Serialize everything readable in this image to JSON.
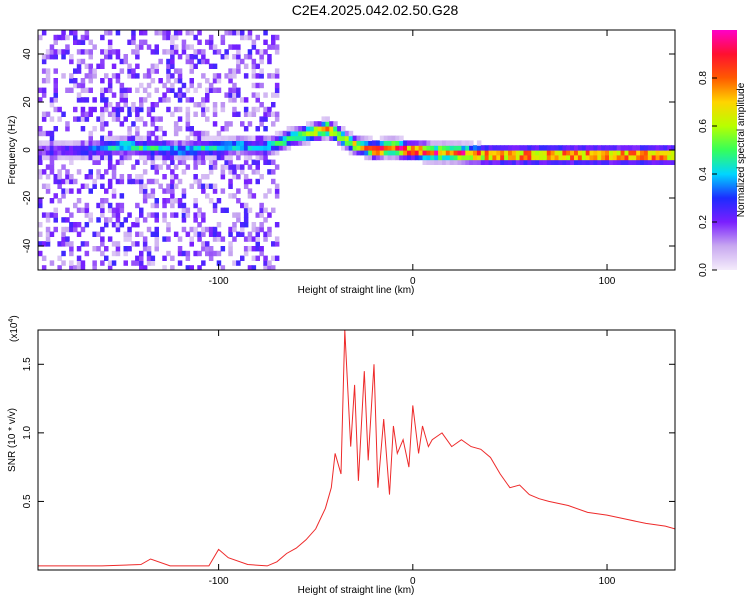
{
  "title": "C2E4.2025.042.02.50.G28",
  "chart_data": [
    {
      "type": "heatmap",
      "xlabel": "Height of straight line (km)",
      "ylabel": "Frequency (Hz)",
      "xlim": [
        -193,
        135
      ],
      "ylim": [
        -50,
        50
      ],
      "xticks": [
        -100,
        0,
        100
      ],
      "xtick_labels": [
        "-100",
        "0",
        "100"
      ],
      "yticks": [
        -40,
        -20,
        0,
        20,
        40
      ],
      "ytick_labels": [
        "-40",
        "-20",
        "0",
        "20",
        "40"
      ],
      "colorbar": {
        "label": "Normalized spectral amplitude",
        "range": [
          0,
          1
        ],
        "ticks": [
          0.0,
          0.2,
          0.4,
          0.6,
          0.8
        ],
        "tick_labels": [
          "0.0",
          "0.2",
          "0.4",
          "0.6",
          "0.8"
        ],
        "colors": [
          "#f4ecfb",
          "#c8a8f0",
          "#7a1fff",
          "#1c2cff",
          "#00d6ff",
          "#35ff5a",
          "#b8ff00",
          "#ffd400",
          "#ff5a00",
          "#ff1030",
          "#ff00c8"
        ]
      },
      "ridge": {
        "x": [
          -193,
          -170,
          -160,
          -150,
          -140,
          -130,
          -120,
          -110,
          -100,
          -90,
          -80,
          -70,
          -65,
          -60,
          -55,
          -50,
          -45,
          -40,
          -35,
          -30,
          -25,
          -20,
          -15,
          -10,
          -5,
          0,
          10,
          20,
          40,
          60,
          80,
          100,
          120,
          135
        ],
        "frequency": [
          0,
          0,
          1,
          2,
          1,
          1,
          0,
          1,
          1,
          2,
          1,
          3,
          5,
          6,
          7,
          8,
          9,
          7,
          4,
          2,
          1,
          0,
          1,
          1,
          0,
          0,
          -1,
          -1,
          -2,
          -2,
          -2,
          -2,
          -2,
          -2
        ],
        "peak_amplitude": [
          0.2,
          0.3,
          0.4,
          0.5,
          0.5,
          0.45,
          0.4,
          0.45,
          0.5,
          0.45,
          0.4,
          0.5,
          0.55,
          0.6,
          0.65,
          0.75,
          0.8,
          0.7,
          0.65,
          0.7,
          0.8,
          0.9,
          0.95,
          1.0,
          0.95,
          0.95,
          0.9,
          0.9,
          0.9,
          0.9,
          0.9,
          0.9,
          0.9,
          0.9
        ]
      },
      "noise_region_x": [
        -193,
        -70
      ]
    },
    {
      "type": "line",
      "xlabel": "Height of straight line (km)",
      "ylabel": "SNR (10 * v/v)",
      "y_multiplier": "(x10^4)",
      "y_multiplier_base": "(x10",
      "y_multiplier_exp": "4",
      "y_multiplier_close": ")",
      "xlim": [
        -193,
        135
      ],
      "ylim": [
        0,
        17500
      ],
      "xticks": [
        -100,
        0,
        100
      ],
      "xtick_labels": [
        "-100",
        "0",
        "100"
      ],
      "yticks": [
        5000,
        10000,
        15000
      ],
      "ytick_labels": [
        "0.5",
        "1.0",
        "1.5"
      ],
      "color": "#ee2a2a",
      "series": [
        {
          "x": [
            -193,
            -160,
            -140,
            -135,
            -125,
            -105,
            -100,
            -95,
            -85,
            -75,
            -70,
            -65,
            -60,
            -55,
            -50,
            -45,
            -42,
            -40,
            -37,
            -35,
            -32,
            -30,
            -28,
            -25,
            -23,
            -20,
            -18,
            -15,
            -12,
            -10,
            -8,
            -5,
            -2,
            0,
            3,
            5,
            8,
            10,
            15,
            20,
            25,
            30,
            35,
            40,
            45,
            50,
            55,
            60,
            65,
            70,
            80,
            90,
            100,
            110,
            120,
            130,
            135
          ],
          "values": [
            300,
            300,
            400,
            800,
            300,
            300,
            1500,
            900,
            400,
            300,
            600,
            1200,
            1600,
            2200,
            3000,
            4500,
            6000,
            8500,
            7000,
            17500,
            9000,
            13500,
            6500,
            14500,
            8000,
            15000,
            6000,
            11000,
            5500,
            10500,
            8500,
            9500,
            7500,
            12000,
            8500,
            10500,
            9000,
            9500,
            10000,
            9000,
            9500,
            9000,
            8800,
            8200,
            7000,
            6000,
            6200,
            5500,
            5200,
            5000,
            4700,
            4200,
            4000,
            3700,
            3400,
            3200,
            3000
          ]
        }
      ]
    }
  ]
}
